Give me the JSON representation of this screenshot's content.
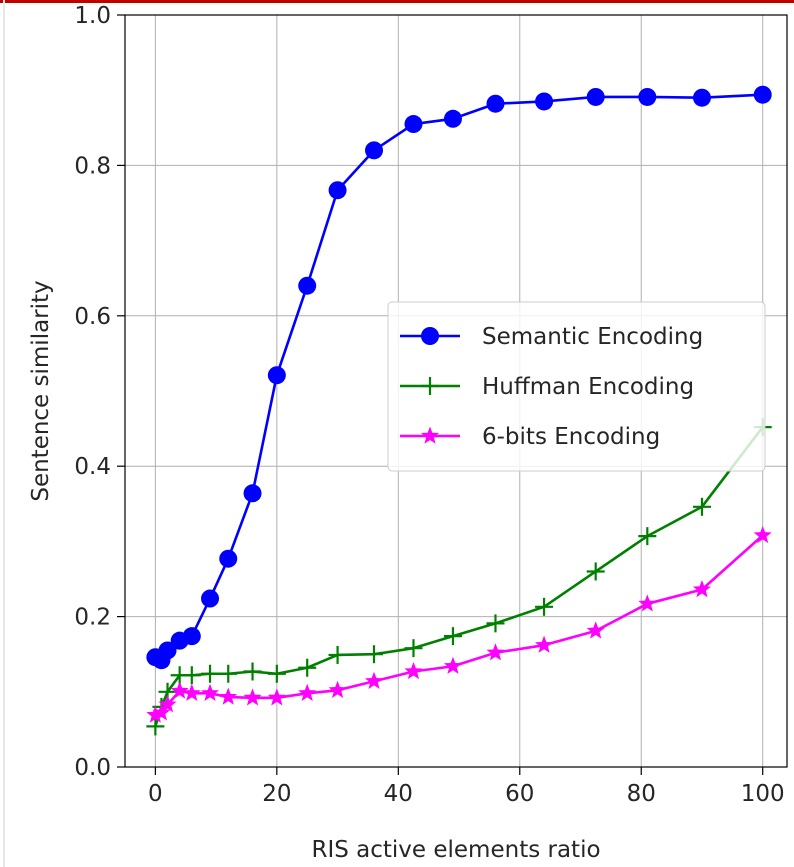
{
  "chart_data": {
    "type": "line",
    "title": "",
    "xlabel": "RIS active elements ratio",
    "ylabel": "Sentence similarity",
    "xlim": [
      -5,
      104
    ],
    "ylim": [
      0,
      1.0
    ],
    "xticks": [
      0,
      20,
      40,
      60,
      80,
      100
    ],
    "yticks": [
      0.0,
      0.2,
      0.4,
      0.6,
      0.8,
      1.0
    ],
    "xtick_labels": [
      "0",
      "20",
      "40",
      "60",
      "80",
      "100"
    ],
    "ytick_labels": [
      "0.0",
      "0.2",
      "0.4",
      "0.6",
      "0.8",
      "1.0"
    ],
    "grid": true,
    "legend_position": "center-right",
    "series": [
      {
        "name": "Semantic Encoding",
        "color": "#0000ff",
        "marker": "circle",
        "x": [
          0,
          1,
          2,
          4,
          6,
          9,
          12,
          16,
          20,
          25,
          30,
          36,
          42.5,
          49,
          56,
          64,
          72.5,
          81,
          90,
          100
        ],
        "y": [
          0.146,
          0.142,
          0.155,
          0.168,
          0.174,
          0.224,
          0.277,
          0.364,
          0.521,
          0.64,
          0.767,
          0.82,
          0.855,
          0.862,
          0.882,
          0.885,
          0.891,
          0.891,
          0.89,
          0.894
        ]
      },
      {
        "name": "Huffman Encoding",
        "color": "#008000",
        "marker": "plus",
        "x": [
          0,
          1,
          2,
          4,
          6,
          9,
          12,
          16,
          20,
          25,
          30,
          36,
          42.5,
          49,
          56,
          64,
          72.5,
          81,
          90,
          100
        ],
        "y": [
          0.054,
          0.08,
          0.1,
          0.122,
          0.122,
          0.124,
          0.124,
          0.127,
          0.124,
          0.132,
          0.149,
          0.15,
          0.158,
          0.174,
          0.191,
          0.213,
          0.26,
          0.307,
          0.346,
          0.452
        ]
      },
      {
        "name": "6-bits Encoding",
        "color": "#ff00ff",
        "marker": "star",
        "x": [
          0,
          1,
          2,
          4,
          6,
          9,
          12,
          16,
          20,
          25,
          30,
          36,
          42.5,
          49,
          56,
          64,
          72.5,
          81,
          90,
          100
        ],
        "y": [
          0.069,
          0.072,
          0.083,
          0.101,
          0.098,
          0.098,
          0.093,
          0.092,
          0.092,
          0.098,
          0.102,
          0.114,
          0.127,
          0.134,
          0.152,
          0.162,
          0.181,
          0.217,
          0.236,
          0.308
        ]
      }
    ]
  }
}
